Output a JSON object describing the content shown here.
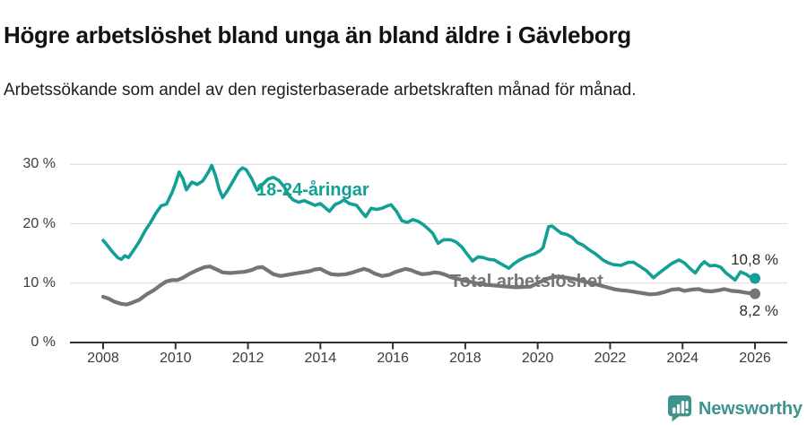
{
  "header": {
    "title": "Högre arbetslöshet bland unga än bland äldre i Gävleborg",
    "subtitle": "Arbetssökande som andel av den registerbaserade arbetskraften månad för månad."
  },
  "chart_data": {
    "type": "line",
    "title": "Högre arbetslöshet bland unga än bland äldre i Gävleborg",
    "subtitle": "Arbetssökande som andel av den registerbaserade arbetskraften månad för månad.",
    "grid": "horizontal-only",
    "legend_position": "inline-labels",
    "x_axis": {
      "ticks": [
        2008,
        2010,
        2012,
        2014,
        2016,
        2018,
        2020,
        2022,
        2024,
        2026
      ],
      "range": [
        2007.1,
        2026.9
      ]
    },
    "y_axis": {
      "ticks": [
        {
          "value": 0,
          "label": "0 %"
        },
        {
          "value": 10,
          "label": "10 %"
        },
        {
          "value": 20,
          "label": "20 %"
        },
        {
          "value": 30,
          "label": "30 %"
        }
      ],
      "gridlines": [
        10,
        20,
        30
      ],
      "range": [
        0,
        32
      ]
    },
    "style": {
      "grid_color": "#d9d9d9",
      "axis_color": "#303030",
      "tick_label_color": "#3c3c3c",
      "end_dot_radius": 6
    },
    "series": [
      {
        "name": "18-24-åringar",
        "color": "#12a095",
        "line_width": 3.6,
        "end_label": "10,8 %",
        "end_value": 10.8,
        "points": [
          [
            2008.0,
            17.2
          ],
          [
            2008.1,
            16.5
          ],
          [
            2008.25,
            15.3
          ],
          [
            2008.4,
            14.3
          ],
          [
            2008.5,
            14.0
          ],
          [
            2008.6,
            14.6
          ],
          [
            2008.7,
            14.3
          ],
          [
            2008.85,
            15.6
          ],
          [
            2009.0,
            17.0
          ],
          [
            2009.15,
            18.7
          ],
          [
            2009.3,
            20.1
          ],
          [
            2009.45,
            21.7
          ],
          [
            2009.6,
            23.0
          ],
          [
            2009.75,
            23.3
          ],
          [
            2009.9,
            25.2
          ],
          [
            2010.0,
            26.8
          ],
          [
            2010.1,
            28.7
          ],
          [
            2010.2,
            27.6
          ],
          [
            2010.3,
            25.7
          ],
          [
            2010.45,
            27.0
          ],
          [
            2010.6,
            26.6
          ],
          [
            2010.75,
            27.2
          ],
          [
            2010.9,
            28.6
          ],
          [
            2011.0,
            29.8
          ],
          [
            2011.1,
            28.2
          ],
          [
            2011.2,
            25.9
          ],
          [
            2011.3,
            24.4
          ],
          [
            2011.45,
            25.7
          ],
          [
            2011.6,
            27.3
          ],
          [
            2011.75,
            28.9
          ],
          [
            2011.85,
            29.4
          ],
          [
            2011.95,
            29.1
          ],
          [
            2012.1,
            27.6
          ],
          [
            2012.25,
            25.6
          ],
          [
            2012.4,
            26.6
          ],
          [
            2012.55,
            27.5
          ],
          [
            2012.7,
            27.8
          ],
          [
            2012.85,
            27.3
          ],
          [
            2013.0,
            26.2
          ],
          [
            2013.15,
            24.6
          ],
          [
            2013.25,
            24.0
          ],
          [
            2013.4,
            23.6
          ],
          [
            2013.55,
            23.9
          ],
          [
            2013.7,
            23.5
          ],
          [
            2013.85,
            23.1
          ],
          [
            2014.0,
            23.4
          ],
          [
            2014.15,
            22.6
          ],
          [
            2014.25,
            22.1
          ],
          [
            2014.4,
            23.2
          ],
          [
            2014.55,
            23.6
          ],
          [
            2014.65,
            24.0
          ],
          [
            2014.8,
            23.4
          ],
          [
            2015.0,
            23.1
          ],
          [
            2015.15,
            21.9
          ],
          [
            2015.25,
            21.2
          ],
          [
            2015.4,
            22.6
          ],
          [
            2015.55,
            22.4
          ],
          [
            2015.7,
            22.6
          ],
          [
            2015.85,
            23.0
          ],
          [
            2015.95,
            23.2
          ],
          [
            2016.1,
            22.1
          ],
          [
            2016.25,
            20.5
          ],
          [
            2016.4,
            20.2
          ],
          [
            2016.55,
            20.7
          ],
          [
            2016.7,
            20.4
          ],
          [
            2016.85,
            19.8
          ],
          [
            2017.0,
            19.0
          ],
          [
            2017.1,
            18.4
          ],
          [
            2017.25,
            16.7
          ],
          [
            2017.4,
            17.3
          ],
          [
            2017.6,
            17.3
          ],
          [
            2017.75,
            16.9
          ],
          [
            2017.9,
            16.1
          ],
          [
            2018.05,
            14.9
          ],
          [
            2018.2,
            13.7
          ],
          [
            2018.35,
            14.4
          ],
          [
            2018.5,
            14.3
          ],
          [
            2018.65,
            14.0
          ],
          [
            2018.8,
            13.9
          ],
          [
            2019.0,
            13.2
          ],
          [
            2019.2,
            12.5
          ],
          [
            2019.35,
            13.3
          ],
          [
            2019.5,
            13.9
          ],
          [
            2019.7,
            14.5
          ],
          [
            2019.9,
            14.9
          ],
          [
            2020.05,
            15.4
          ],
          [
            2020.15,
            16.0
          ],
          [
            2020.3,
            19.5
          ],
          [
            2020.4,
            19.6
          ],
          [
            2020.5,
            19.1
          ],
          [
            2020.65,
            18.4
          ],
          [
            2020.8,
            18.2
          ],
          [
            2020.95,
            17.7
          ],
          [
            2021.1,
            16.8
          ],
          [
            2021.25,
            16.4
          ],
          [
            2021.4,
            15.7
          ],
          [
            2021.6,
            14.9
          ],
          [
            2021.8,
            13.9
          ],
          [
            2021.95,
            13.4
          ],
          [
            2022.1,
            13.1
          ],
          [
            2022.3,
            13.0
          ],
          [
            2022.5,
            13.5
          ],
          [
            2022.65,
            13.5
          ],
          [
            2022.8,
            12.9
          ],
          [
            2023.0,
            12.1
          ],
          [
            2023.2,
            10.9
          ],
          [
            2023.35,
            11.7
          ],
          [
            2023.55,
            12.6
          ],
          [
            2023.7,
            13.3
          ],
          [
            2023.9,
            13.9
          ],
          [
            2024.05,
            13.4
          ],
          [
            2024.2,
            12.5
          ],
          [
            2024.35,
            11.7
          ],
          [
            2024.5,
            13.0
          ],
          [
            2024.6,
            13.6
          ],
          [
            2024.75,
            12.9
          ],
          [
            2024.9,
            13.0
          ],
          [
            2025.05,
            12.7
          ],
          [
            2025.2,
            11.7
          ],
          [
            2025.35,
            11.0
          ],
          [
            2025.45,
            10.5
          ],
          [
            2025.6,
            11.9
          ],
          [
            2025.75,
            11.5
          ],
          [
            2025.85,
            11.1
          ],
          [
            2026.0,
            10.8
          ]
        ]
      },
      {
        "name": "Total arbetslöshet",
        "color": "#757575",
        "line_width": 4.2,
        "end_label": "8,2 %",
        "end_value": 8.2,
        "points": [
          [
            2008.0,
            7.7
          ],
          [
            2008.15,
            7.4
          ],
          [
            2008.3,
            6.9
          ],
          [
            2008.5,
            6.5
          ],
          [
            2008.65,
            6.4
          ],
          [
            2008.8,
            6.7
          ],
          [
            2009.0,
            7.2
          ],
          [
            2009.2,
            8.1
          ],
          [
            2009.4,
            8.8
          ],
          [
            2009.6,
            9.7
          ],
          [
            2009.75,
            10.3
          ],
          [
            2009.9,
            10.5
          ],
          [
            2010.05,
            10.5
          ],
          [
            2010.2,
            10.9
          ],
          [
            2010.4,
            11.6
          ],
          [
            2010.6,
            12.2
          ],
          [
            2010.8,
            12.7
          ],
          [
            2010.95,
            12.8
          ],
          [
            2011.1,
            12.4
          ],
          [
            2011.3,
            11.8
          ],
          [
            2011.5,
            11.7
          ],
          [
            2011.7,
            11.8
          ],
          [
            2011.9,
            11.9
          ],
          [
            2012.1,
            12.2
          ],
          [
            2012.25,
            12.6
          ],
          [
            2012.4,
            12.7
          ],
          [
            2012.55,
            12.1
          ],
          [
            2012.7,
            11.5
          ],
          [
            2012.9,
            11.2
          ],
          [
            2013.1,
            11.4
          ],
          [
            2013.3,
            11.6
          ],
          [
            2013.5,
            11.8
          ],
          [
            2013.7,
            12.0
          ],
          [
            2013.85,
            12.3
          ],
          [
            2014.0,
            12.4
          ],
          [
            2014.15,
            11.9
          ],
          [
            2014.3,
            11.5
          ],
          [
            2014.5,
            11.4
          ],
          [
            2014.7,
            11.5
          ],
          [
            2014.9,
            11.8
          ],
          [
            2015.05,
            12.1
          ],
          [
            2015.2,
            12.4
          ],
          [
            2015.35,
            12.1
          ],
          [
            2015.5,
            11.6
          ],
          [
            2015.7,
            11.2
          ],
          [
            2015.9,
            11.4
          ],
          [
            2016.05,
            11.8
          ],
          [
            2016.2,
            12.1
          ],
          [
            2016.35,
            12.4
          ],
          [
            2016.5,
            12.2
          ],
          [
            2016.65,
            11.8
          ],
          [
            2016.8,
            11.5
          ],
          [
            2017.0,
            11.6
          ],
          [
            2017.15,
            11.8
          ],
          [
            2017.3,
            11.7
          ],
          [
            2017.45,
            11.4
          ],
          [
            2017.6,
            11.0
          ],
          [
            2017.8,
            10.7
          ],
          [
            2018.0,
            10.4
          ],
          [
            2018.3,
            10.0
          ],
          [
            2018.6,
            9.7
          ],
          [
            2019.0,
            9.5
          ],
          [
            2019.4,
            9.3
          ],
          [
            2019.8,
            9.4
          ],
          [
            2020.2,
            10.6
          ],
          [
            2020.45,
            11.1
          ],
          [
            2020.7,
            11.0
          ],
          [
            2021.0,
            10.7
          ],
          [
            2021.4,
            10.1
          ],
          [
            2021.8,
            9.5
          ],
          [
            2022.1,
            9.0
          ],
          [
            2022.3,
            8.8
          ],
          [
            2022.5,
            8.7
          ],
          [
            2022.7,
            8.5
          ],
          [
            2022.9,
            8.3
          ],
          [
            2023.1,
            8.1
          ],
          [
            2023.3,
            8.2
          ],
          [
            2023.5,
            8.5
          ],
          [
            2023.7,
            8.9
          ],
          [
            2023.9,
            9.0
          ],
          [
            2024.05,
            8.7
          ],
          [
            2024.25,
            8.9
          ],
          [
            2024.45,
            9.0
          ],
          [
            2024.6,
            8.7
          ],
          [
            2024.8,
            8.6
          ],
          [
            2025.0,
            8.8
          ],
          [
            2025.15,
            9.0
          ],
          [
            2025.35,
            8.7
          ],
          [
            2025.55,
            8.6
          ],
          [
            2025.75,
            8.4
          ],
          [
            2026.0,
            8.2
          ]
        ]
      }
    ]
  },
  "footer": {
    "brand": "Newsworthy",
    "brand_color": "#3e948c",
    "logo_icon": "bar-chart-speech-bubble"
  }
}
